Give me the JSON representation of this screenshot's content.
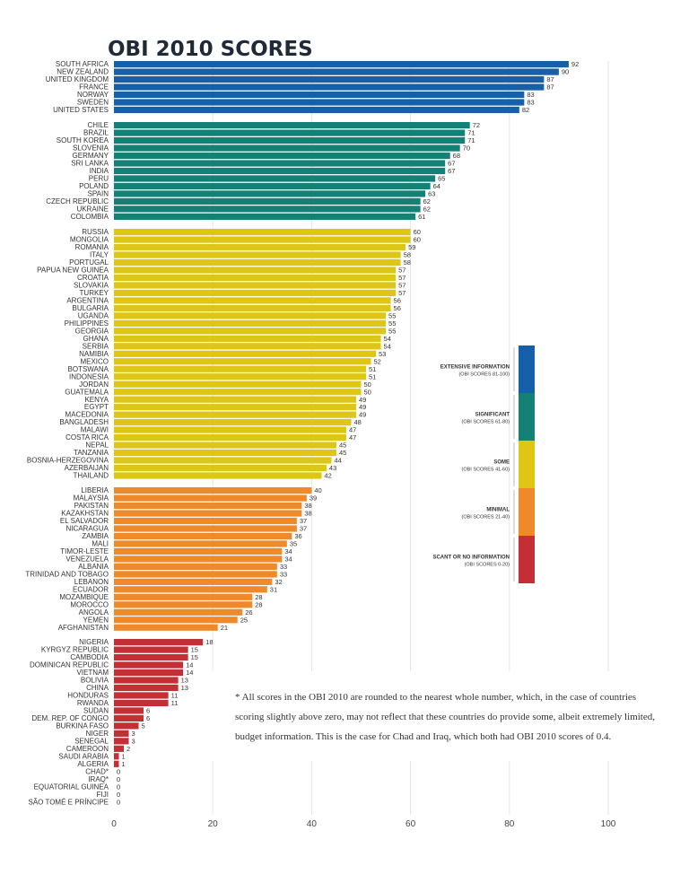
{
  "chart_data": {
    "type": "bar",
    "orientation": "horizontal",
    "title": "OBI 2010 SCORES",
    "xlim": [
      0,
      100
    ],
    "xticks": [
      0,
      20,
      40,
      60,
      80,
      100
    ],
    "groups": [
      {
        "name": "EXTENSIVE INFORMATION",
        "range": "(OBI SCORES 81-100)",
        "color": "#1560a8",
        "countries": [
          {
            "name": "SOUTH AFRICA",
            "value": 92
          },
          {
            "name": "NEW ZEALAND",
            "value": 90
          },
          {
            "name": "UNITED KINGDOM",
            "value": 87
          },
          {
            "name": "FRANCE",
            "value": 87
          },
          {
            "name": "NORWAY",
            "value": 83
          },
          {
            "name": "SWEDEN",
            "value": 83
          },
          {
            "name": "UNITED STATES",
            "value": 82
          }
        ]
      },
      {
        "name": "SIGNIFICANT",
        "range": "(OBI SCORES 61-80)",
        "color": "#138176",
        "countries": [
          {
            "name": "CHILE",
            "value": 72
          },
          {
            "name": "BRAZIL",
            "value": 71
          },
          {
            "name": "SOUTH KOREA",
            "value": 71
          },
          {
            "name": "SLOVENIA",
            "value": 70
          },
          {
            "name": "GERMANY",
            "value": 68
          },
          {
            "name": "SRI LANKA",
            "value": 67
          },
          {
            "name": "INDIA",
            "value": 67
          },
          {
            "name": "PERU",
            "value": 65
          },
          {
            "name": "POLAND",
            "value": 64
          },
          {
            "name": "SPAIN",
            "value": 63
          },
          {
            "name": "CZECH REPUBLIC",
            "value": 62
          },
          {
            "name": "UKRAINE",
            "value": 62
          },
          {
            "name": "COLOMBIA",
            "value": 61
          }
        ]
      },
      {
        "name": "SOME",
        "range": "(OBI SCORES 41-60)",
        "color": "#ddc714",
        "countries": [
          {
            "name": "RUSSIA",
            "value": 60
          },
          {
            "name": "MONGOLIA",
            "value": 60
          },
          {
            "name": "ROMANIA",
            "value": 59
          },
          {
            "name": "ITALY",
            "value": 58
          },
          {
            "name": "PORTUGAL",
            "value": 58
          },
          {
            "name": "PAPUA NEW GUINEA",
            "value": 57
          },
          {
            "name": "CROATIA",
            "value": 57
          },
          {
            "name": "SLOVAKIA",
            "value": 57
          },
          {
            "name": "TURKEY",
            "value": 57
          },
          {
            "name": "ARGENTINA",
            "value": 56
          },
          {
            "name": "BULGARIA",
            "value": 56
          },
          {
            "name": "UGANDA",
            "value": 55
          },
          {
            "name": "PHILIPPINES",
            "value": 55
          },
          {
            "name": "GEORGIA",
            "value": 55
          },
          {
            "name": "GHANA",
            "value": 54
          },
          {
            "name": "SERBIA",
            "value": 54
          },
          {
            "name": "NAMIBIA",
            "value": 53
          },
          {
            "name": "MEXICO",
            "value": 52
          },
          {
            "name": "BOTSWANA",
            "value": 51
          },
          {
            "name": "INDONESIA",
            "value": 51
          },
          {
            "name": "JORDAN",
            "value": 50
          },
          {
            "name": "GUATEMALA",
            "value": 50
          },
          {
            "name": "KENYA",
            "value": 49
          },
          {
            "name": "EGYPT",
            "value": 49
          },
          {
            "name": "MACEDONIA",
            "value": 49
          },
          {
            "name": "BANGLADESH",
            "value": 48
          },
          {
            "name": "MALAWI",
            "value": 47
          },
          {
            "name": "COSTA RICA",
            "value": 47
          },
          {
            "name": "NEPAL",
            "value": 45
          },
          {
            "name": "TANZANIA",
            "value": 45
          },
          {
            "name": "BOSNIA-HERZEGOVINA",
            "value": 44
          },
          {
            "name": "AZERBAIJAN",
            "value": 43
          },
          {
            "name": "THAILAND",
            "value": 42
          }
        ]
      },
      {
        "name": "MINIMAL",
        "range": "(OBI SCORES 21-40)",
        "color": "#ef8a2a",
        "countries": [
          {
            "name": "LIBERIA",
            "value": 40
          },
          {
            "name": "MALAYSIA",
            "value": 39
          },
          {
            "name": "PAKISTAN",
            "value": 38
          },
          {
            "name": "KAZAKHSTAN",
            "value": 38
          },
          {
            "name": "EL SALVADOR",
            "value": 37
          },
          {
            "name": "NICARAGUA",
            "value": 37
          },
          {
            "name": "ZAMBIA",
            "value": 36
          },
          {
            "name": "MALI",
            "value": 35
          },
          {
            "name": "TIMOR-LESTE",
            "value": 34
          },
          {
            "name": "VENEZUELA",
            "value": 34
          },
          {
            "name": "ALBANIA",
            "value": 33
          },
          {
            "name": "TRINIDAD AND TOBAGO",
            "value": 33
          },
          {
            "name": "LEBANON",
            "value": 32
          },
          {
            "name": "ECUADOR",
            "value": 31
          },
          {
            "name": "MOZAMBIQUE",
            "value": 28
          },
          {
            "name": "MOROCCO",
            "value": 28
          },
          {
            "name": "ANGOLA",
            "value": 26
          },
          {
            "name": "YEMEN",
            "value": 25
          },
          {
            "name": "AFGHANISTAN",
            "value": 21
          }
        ]
      },
      {
        "name": "SCANT OR NO INFORMATION",
        "range": "(OBI SCORES 0-20)",
        "color": "#c42f36",
        "countries": [
          {
            "name": "NIGERIA",
            "value": 18
          },
          {
            "name": "KYRGYZ REPUBLIC",
            "value": 15
          },
          {
            "name": "CAMBODIA",
            "value": 15
          },
          {
            "name": "DOMINICAN REPUBLIC",
            "value": 14
          },
          {
            "name": "VIETNAM",
            "value": 14
          },
          {
            "name": "BOLIVIA",
            "value": 13
          },
          {
            "name": "CHINA",
            "value": 13
          },
          {
            "name": "HONDURAS",
            "value": 11
          },
          {
            "name": "RWANDA",
            "value": 11
          },
          {
            "name": "SUDAN",
            "value": 6
          },
          {
            "name": "DEM. REP. OF CONGO",
            "value": 6
          },
          {
            "name": "BURKINA FASO",
            "value": 5
          },
          {
            "name": "NIGER",
            "value": 3
          },
          {
            "name": "SENEGAL",
            "value": 3
          },
          {
            "name": "CAMEROON",
            "value": 2
          },
          {
            "name": "SAUDI ARABIA",
            "value": 1
          },
          {
            "name": "ALGERIA",
            "value": 1
          },
          {
            "name": "CHAD*",
            "value": 0
          },
          {
            "name": "IRAQ*",
            "value": 0
          },
          {
            "name": "EQUATORIAL GUINEA",
            "value": 0
          },
          {
            "name": "FIJI",
            "value": 0
          },
          {
            "name": "SÃO TOMÉ E PRÍNCIPE",
            "value": 0
          }
        ]
      }
    ]
  },
  "footnote": "* All scores in the OBI 2010 are rounded to the nearest whole number, which, in the case of countries scoring slightly above zero, may not reflect that these countries do provide some, albeit extremely limited, budget information. This is the case for Chad and Iraq, which both had OBI 2010 scores of 0.4."
}
